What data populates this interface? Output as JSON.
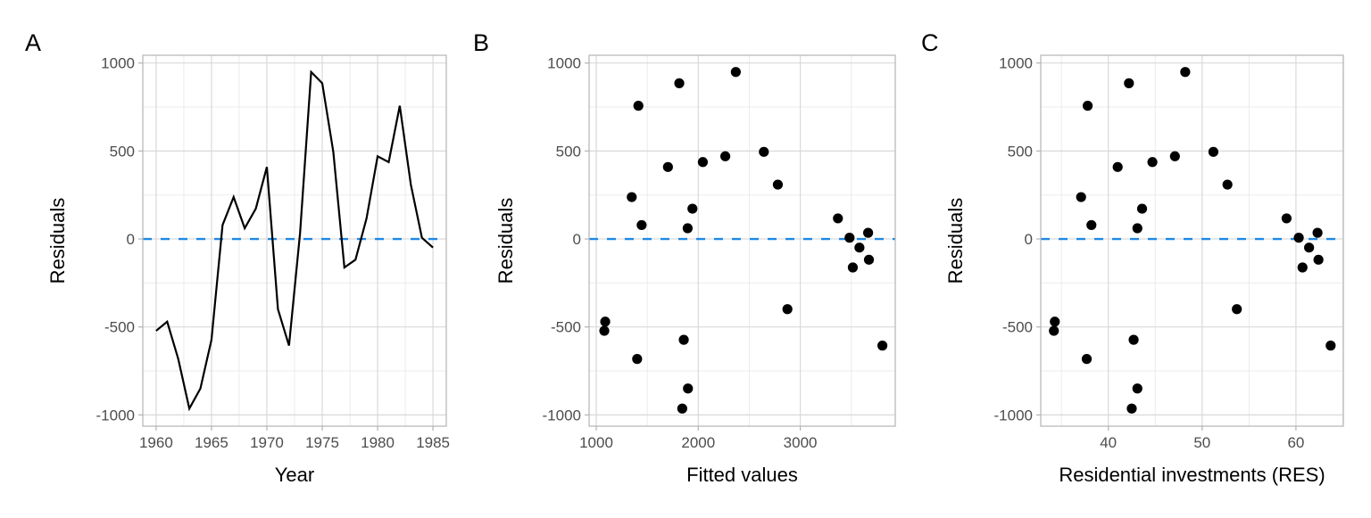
{
  "chart_data": [
    {
      "panel": "A",
      "type": "line",
      "title": "",
      "xlabel": "Year",
      "ylabel": "Residuals",
      "xlim": [
        1958.8,
        1986.2
      ],
      "ylim": [
        -1064,
        1044
      ],
      "xticks": [
        1960,
        1965,
        1970,
        1975,
        1980,
        1985
      ],
      "yticks": [
        -1000,
        -500,
        0,
        500,
        1000
      ],
      "xminor": [
        1962.5,
        1967.5,
        1972.5,
        1977.5,
        1982.5
      ],
      "yminor": [
        -750,
        -250,
        250,
        750
      ],
      "grid": true,
      "reference_line": {
        "y": 0,
        "style": "dashed",
        "color": "#1E88E5"
      },
      "line_color": "#000000",
      "x": [
        1960,
        1961,
        1962,
        1963,
        1964,
        1965,
        1966,
        1967,
        1968,
        1969,
        1970,
        1971,
        1972,
        1973,
        1974,
        1975,
        1976,
        1977,
        1978,
        1979,
        1980,
        1981,
        1982,
        1983,
        1984,
        1985
      ],
      "y": [
        -522,
        -470,
        -682,
        -964,
        -850,
        -573,
        79,
        238,
        61,
        172,
        409,
        -399,
        -606,
        35,
        949,
        885,
        495,
        -162,
        -118,
        117,
        470,
        437,
        757,
        309,
        7,
        -49
      ]
    },
    {
      "panel": "B",
      "type": "scatter",
      "title": "",
      "xlabel": "Fitted values",
      "ylabel": "Residuals",
      "xlim": [
        930,
        3931
      ],
      "ylim": [
        -1064,
        1044
      ],
      "xticks": [
        1000,
        2000,
        3000
      ],
      "yticks": [
        -1000,
        -500,
        0,
        500,
        1000
      ],
      "xminor": [
        1500,
        2500,
        3500
      ],
      "yminor": [
        -750,
        -250,
        250,
        750
      ],
      "grid": true,
      "reference_line": {
        "y": 0,
        "style": "dashed",
        "color": "#1E88E5"
      },
      "point_color": "#000000",
      "x": [
        1079,
        1088,
        1401,
        1843,
        1899,
        1858,
        1445,
        1348,
        1896,
        1943,
        1703,
        2874,
        3805,
        3665,
        2368,
        1814,
        2643,
        3515,
        3673,
        3369,
        2265,
        2045,
        1413,
        2780,
        3483,
        3580
      ],
      "y": [
        -522,
        -470,
        -682,
        -964,
        -850,
        -573,
        79,
        238,
        61,
        172,
        409,
        -399,
        -606,
        35,
        949,
        885,
        495,
        -162,
        -118,
        117,
        470,
        437,
        757,
        309,
        7,
        -49
      ]
    },
    {
      "panel": "C",
      "type": "scatter",
      "title": "",
      "xlabel": "Residential investments (RES)",
      "ylabel": "Residuals",
      "xlim": [
        32.8,
        65.05
      ],
      "ylim": [
        -1064,
        1044
      ],
      "xticks": [
        40,
        50,
        60
      ],
      "yticks": [
        -1000,
        -500,
        0,
        500,
        1000
      ],
      "xminor": [
        35,
        45,
        55,
        65
      ],
      "yminor": [
        -750,
        -250,
        250,
        750
      ],
      "grid": true,
      "reference_line": {
        "y": 0,
        "style": "dashed",
        "color": "#1E88E5"
      },
      "point_color": "#000000",
      "x": [
        34.2,
        34.3,
        37.7,
        42.5,
        43.1,
        42.7,
        38.2,
        37.1,
        43.1,
        43.6,
        41.0,
        53.7,
        63.7,
        62.3,
        48.2,
        42.2,
        51.2,
        60.7,
        62.4,
        59.0,
        47.1,
        44.7,
        37.8,
        52.7,
        60.3,
        61.4
      ],
      "y": [
        -522,
        -470,
        -682,
        -964,
        -850,
        -573,
        79,
        238,
        61,
        172,
        409,
        -399,
        -606,
        35,
        949,
        885,
        495,
        -162,
        -118,
        117,
        470,
        437,
        757,
        309,
        7,
        -49
      ]
    }
  ]
}
